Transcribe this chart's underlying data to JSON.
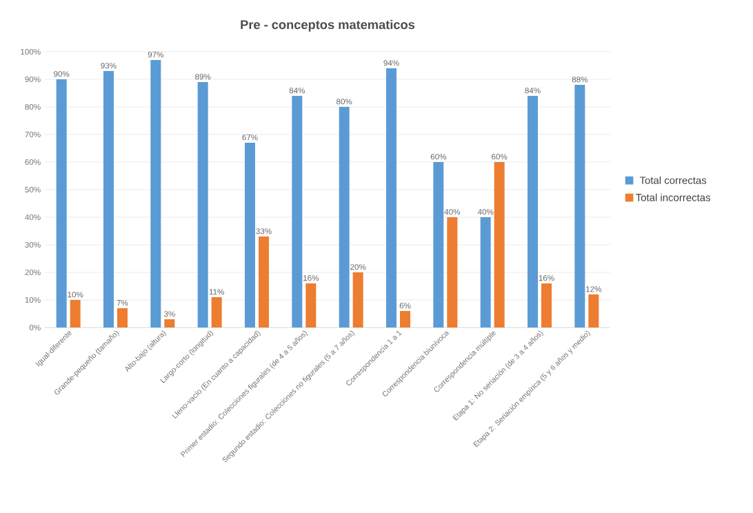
{
  "chart_data": {
    "type": "bar",
    "title": "Pre - conceptos matematicos",
    "categories": [
      "Igual-diferente",
      "Grande-pequeño (tamaño)",
      "Alto-bajo (altura)",
      "Largo-corto (longitud)",
      "Lleno-vacío (En cuanto a capacidad)",
      "Primer estadio: Colecciones figurales (de 4 a 5 años)",
      "Segundo estadio: Colecciones no figurales (5 a 7 años)",
      "Correspondencia 1 a 1",
      "Correspondencia biunívoca",
      "Correspondencia múltiple",
      "Etapa 1: No seriación (de 3 a 4 años)",
      "Etapa 2: Seriación empírica (5 y 6 años y medio)"
    ],
    "series": [
      {
        "name": "Total correctas",
        "color": "#5b9bd5",
        "values": [
          90,
          93,
          97,
          89,
          67,
          84,
          80,
          94,
          60,
          40,
          84,
          88
        ],
        "value_labels": [
          "90%",
          "93%",
          "97%",
          "89%",
          "67%",
          "84%",
          "80%",
          "94%",
          "60%",
          "40%",
          "84%",
          "88%"
        ]
      },
      {
        "name": "Total incorrectas",
        "color": "#ed7d31",
        "values": [
          10,
          7,
          3,
          11,
          33,
          16,
          20,
          6,
          40,
          60,
          16,
          12
        ],
        "value_labels": [
          "10%",
          "7%",
          "3%",
          "11%",
          "33%",
          "16%",
          "20%",
          "6%",
          "40%",
          "60%",
          "16%",
          "12%"
        ]
      }
    ],
    "ylim": [
      0,
      100
    ],
    "yticks": [
      {
        "value": 0,
        "label": "0%"
      },
      {
        "value": 10,
        "label": "10%"
      },
      {
        "value": 20,
        "label": "20%"
      },
      {
        "value": 30,
        "label": "30%"
      },
      {
        "value": 40,
        "label": "40%"
      },
      {
        "value": 50,
        "label": "50%"
      },
      {
        "value": 60,
        "label": "60%"
      },
      {
        "value": 70,
        "label": "70%"
      },
      {
        "value": 80,
        "label": "80%"
      },
      {
        "value": 90,
        "label": "90%"
      },
      {
        "value": 100,
        "label": "100%"
      }
    ],
    "grid": "y",
    "legend": "right"
  }
}
